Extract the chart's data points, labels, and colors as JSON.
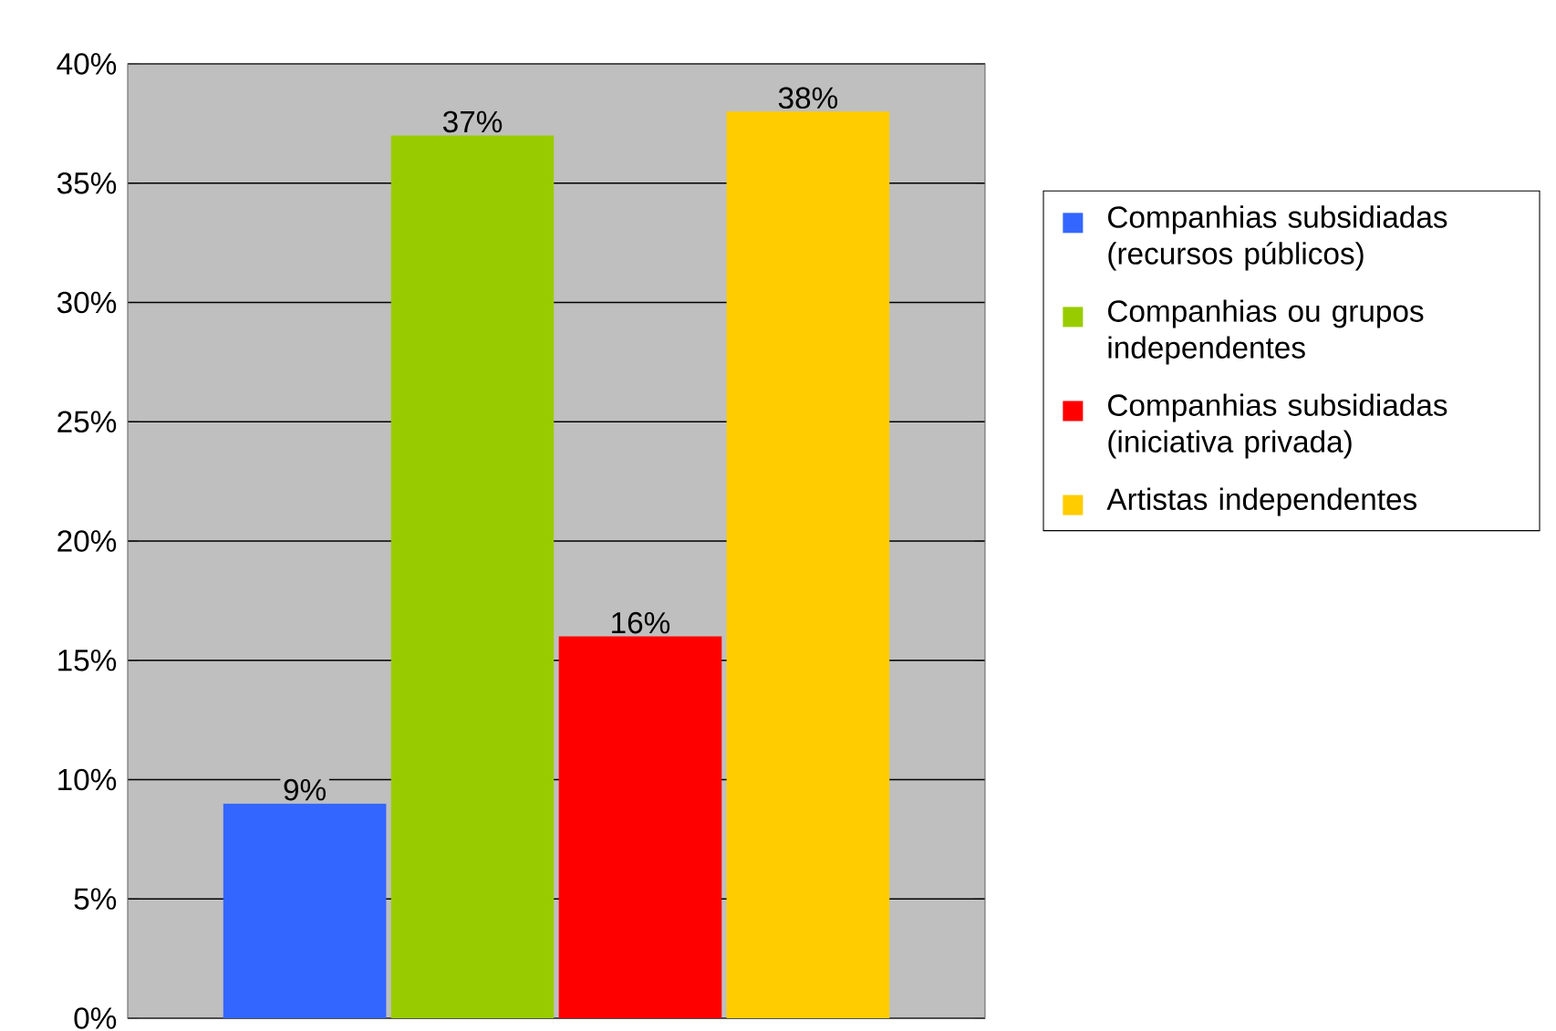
{
  "chart_data": {
    "type": "bar",
    "categories": [
      null
    ],
    "series": [
      {
        "name": "Companhias subsidiadas (recursos públicos)",
        "color": "#3366ff",
        "values": [
          9
        ],
        "value_labels": [
          "9%"
        ]
      },
      {
        "name": "Companhias ou grupos independentes",
        "color": "#99cc00",
        "values": [
          37
        ],
        "value_labels": [
          "37%"
        ]
      },
      {
        "name": "Companhias subsidiadas (iniciativa privada)",
        "color": "#ff0000",
        "values": [
          16
        ],
        "value_labels": [
          "16%"
        ]
      },
      {
        "name": "Artistas independentes",
        "color": "#ffcc00",
        "values": [
          38
        ],
        "value_labels": [
          "38%"
        ]
      }
    ],
    "ylim": [
      0,
      40
    ],
    "yticks": [
      {
        "value": 0,
        "label": "0%"
      },
      {
        "value": 5,
        "label": "5%"
      },
      {
        "value": 10,
        "label": "10%"
      },
      {
        "value": 15,
        "label": "15%"
      },
      {
        "value": 20,
        "label": "20%"
      },
      {
        "value": 25,
        "label": "25%"
      },
      {
        "value": 30,
        "label": "30%"
      },
      {
        "value": 35,
        "label": "35%"
      },
      {
        "value": 40,
        "label": "40%"
      }
    ],
    "grid": "y",
    "legend": "right"
  }
}
